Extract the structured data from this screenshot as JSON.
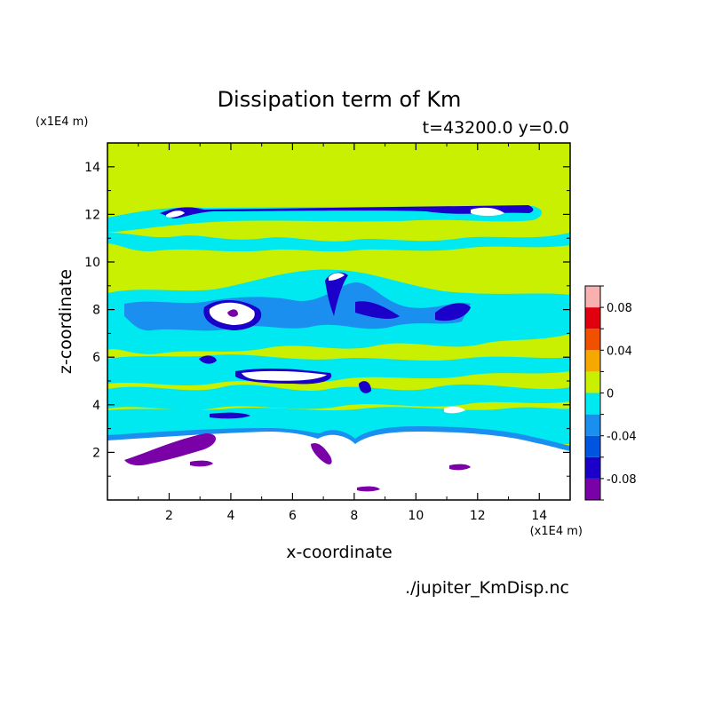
{
  "chart_data": {
    "type": "heatmap",
    "title": "Dissipation term of Km",
    "subtitle": "t=43200.0 y=0.0",
    "xlabel": "x-coordinate",
    "ylabel": "z-coordinate",
    "x_unit": "(x1E4 m)",
    "z_unit": "(x1E4 m)",
    "footer": "./jupiter_KmDisp.nc",
    "xlim": [
      0,
      15
    ],
    "ylim": [
      0,
      15
    ],
    "x_ticks": [
      "2",
      "4",
      "6",
      "8",
      "10",
      "12",
      "14"
    ],
    "y_ticks": [
      "2",
      "4",
      "6",
      "8",
      "10",
      "12",
      "14"
    ],
    "colorbar": {
      "labels": [
        "0.08",
        "0.04",
        "0",
        "-0.04",
        "-0.08"
      ],
      "levels": [
        -0.1,
        -0.08,
        -0.06,
        -0.04,
        -0.02,
        0,
        0.02,
        0.04,
        0.06,
        0.08,
        0.1
      ],
      "colors": [
        "#7a00a8",
        "#1a00c8",
        "#0055e0",
        "#1a8ff0",
        "#00e8f0",
        "#c8f000",
        "#f7a800",
        "#f05000",
        "#e00010",
        "#f8b0b0"
      ]
    },
    "field_summary": {
      "background_value_range": [
        0,
        0.02
      ],
      "bottom_region_value": "missing (white)",
      "negative_bands_z_range": [
        2.5,
        12.5
      ]
    }
  }
}
